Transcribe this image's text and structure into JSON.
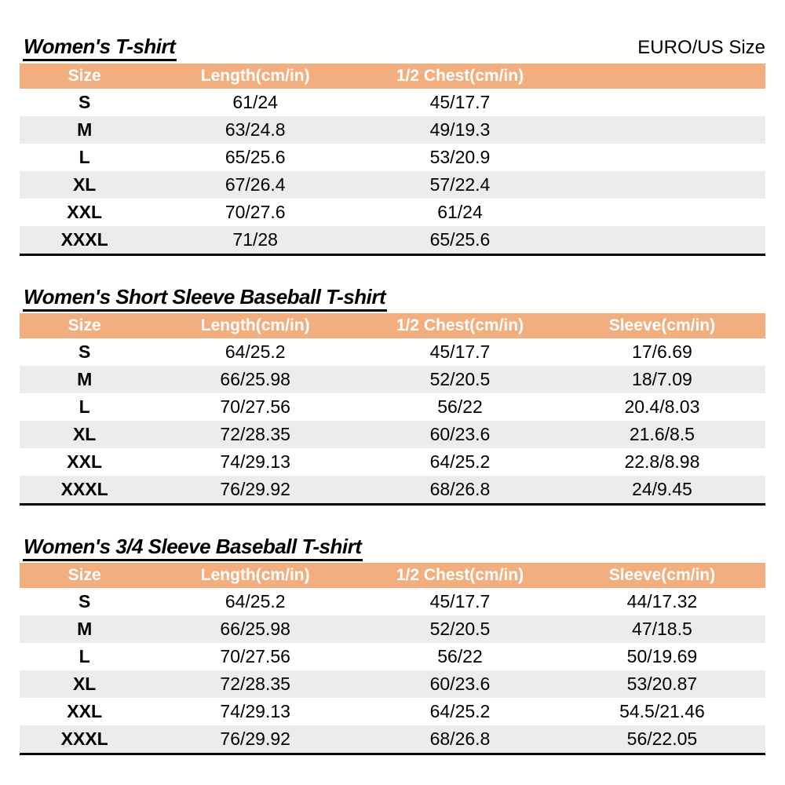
{
  "page": {
    "size_standard_label": "EURO/US Size"
  },
  "colors": {
    "header_bg": "#F3AE80",
    "row_alt_bg": "#ECECEC",
    "header_text": "#FFFFFF",
    "border": "#000000"
  },
  "tables": [
    {
      "title": "Women's T-shirt",
      "columns": [
        "Size",
        "Length(cm/in)",
        "1/2 Chest(cm/in)",
        ""
      ],
      "rows": [
        [
          "S",
          "61/24",
          "45/17.7",
          ""
        ],
        [
          "M",
          "63/24.8",
          "49/19.3",
          ""
        ],
        [
          "L",
          "65/25.6",
          "53/20.9",
          ""
        ],
        [
          "XL",
          "67/26.4",
          "57/22.4",
          ""
        ],
        [
          "XXL",
          "70/27.6",
          "61/24",
          ""
        ],
        [
          "XXXL",
          "71/28",
          "65/25.6",
          ""
        ]
      ]
    },
    {
      "title": "Women's Short Sleeve Baseball T-shirt",
      "columns": [
        "Size",
        "Length(cm/in)",
        "1/2 Chest(cm/in)",
        "Sleeve(cm/in)"
      ],
      "rows": [
        [
          "S",
          "64/25.2",
          "45/17.7",
          "17/6.69"
        ],
        [
          "M",
          "66/25.98",
          "52/20.5",
          "18/7.09"
        ],
        [
          "L",
          "70/27.56",
          "56/22",
          "20.4/8.03"
        ],
        [
          "XL",
          "72/28.35",
          "60/23.6",
          "21.6/8.5"
        ],
        [
          "XXL",
          "74/29.13",
          "64/25.2",
          "22.8/8.98"
        ],
        [
          "XXXL",
          "76/29.92",
          "68/26.8",
          "24/9.45"
        ]
      ]
    },
    {
      "title": "Women's 3/4 Sleeve Baseball T-shirt",
      "columns": [
        "Size",
        "Length(cm/in)",
        "1/2 Chest(cm/in)",
        "Sleeve(cm/in)"
      ],
      "rows": [
        [
          "S",
          "64/25.2",
          "45/17.7",
          "44/17.32"
        ],
        [
          "M",
          "66/25.98",
          "52/20.5",
          "47/18.5"
        ],
        [
          "L",
          "70/27.56",
          "56/22",
          "50/19.69"
        ],
        [
          "XL",
          "72/28.35",
          "60/23.6",
          "53/20.87"
        ],
        [
          "XXL",
          "74/29.13",
          "64/25.2",
          "54.5/21.46"
        ],
        [
          "XXXL",
          "76/29.92",
          "68/26.8",
          "56/22.05"
        ]
      ]
    }
  ]
}
